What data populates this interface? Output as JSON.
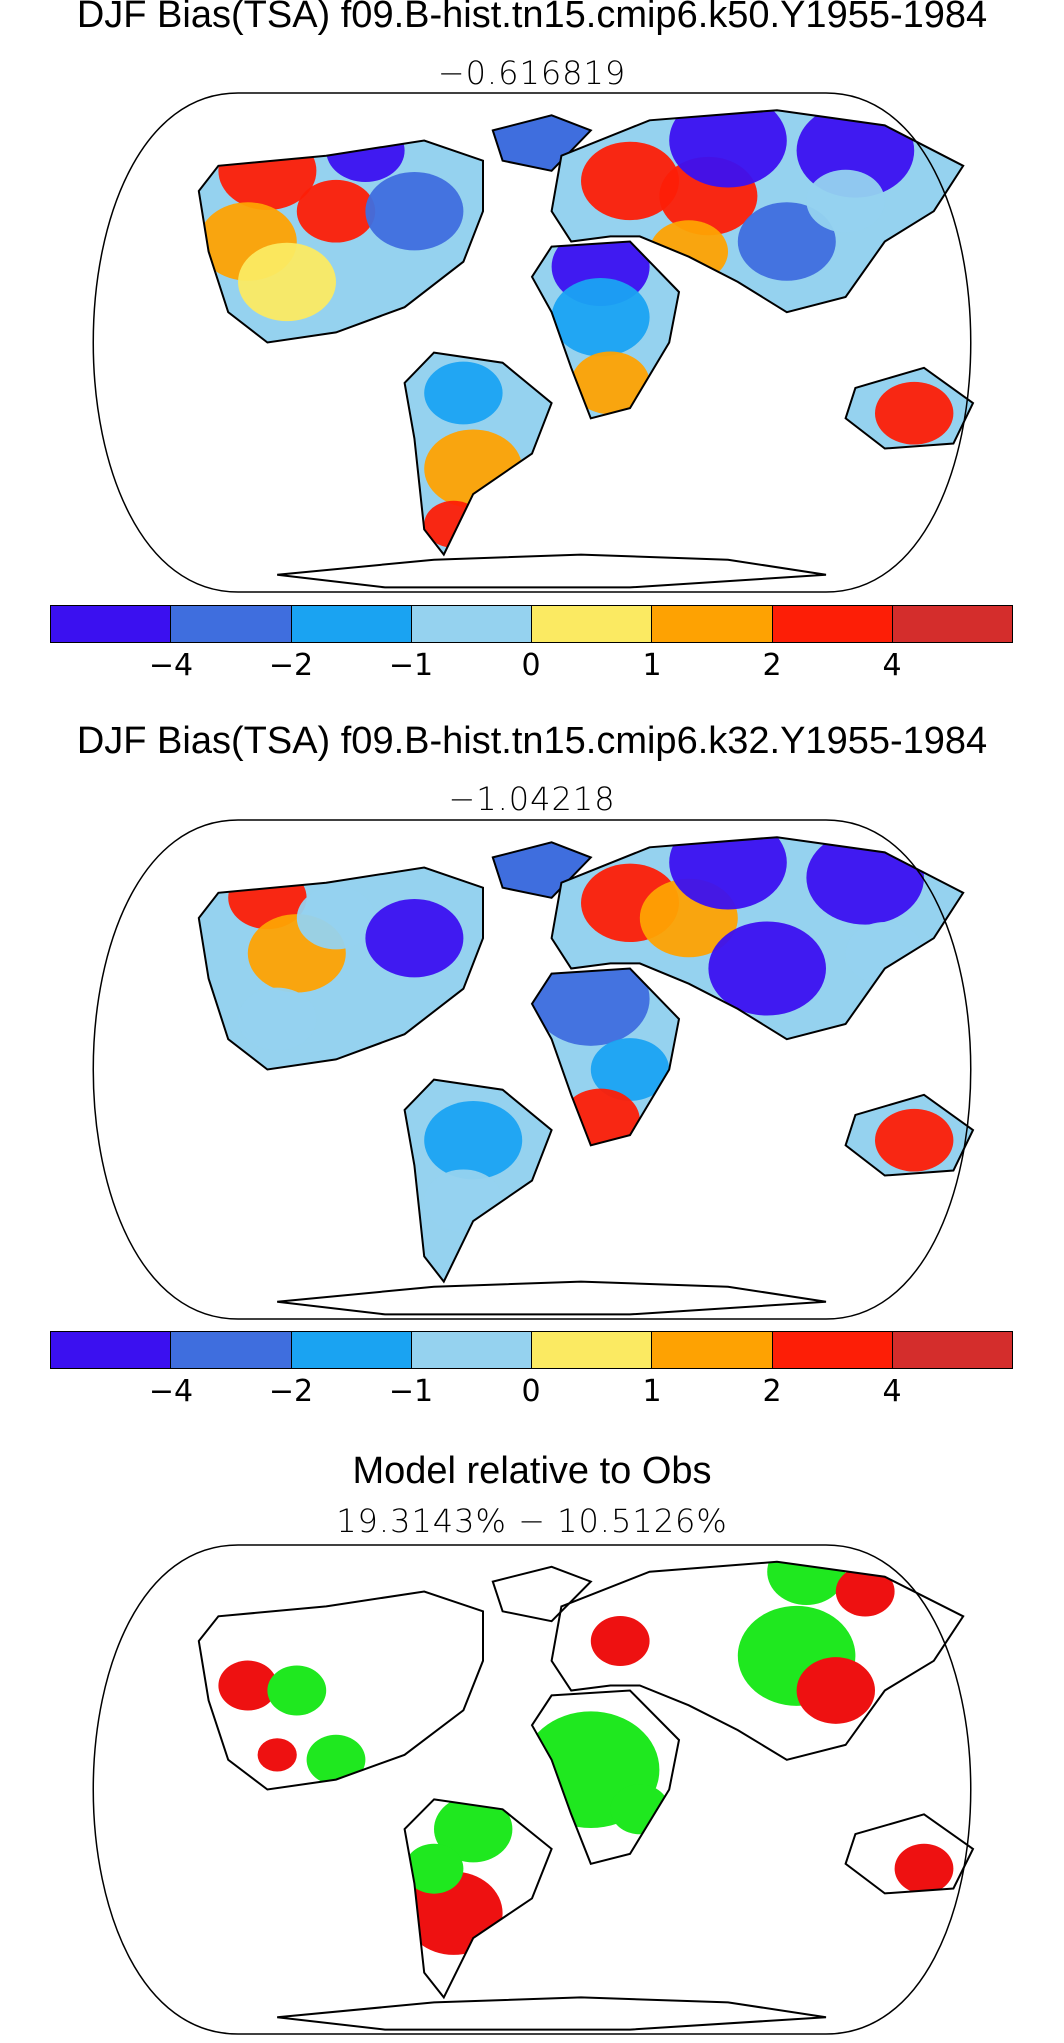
{
  "panels": [
    {
      "title": "DJF Bias(TSA) f09.B-hist.tn15.cmip6.k50.Y1955-1984",
      "subtitle": "−0.616819",
      "variant": 1
    },
    {
      "title": "DJF Bias(TSA) f09.B-hist.tn15.cmip6.k32.Y1955-1984",
      "subtitle": "−1.04218",
      "variant": 2
    },
    {
      "title": "Model relative to Obs",
      "subtitle": "19.3143% − 10.5126%"
    }
  ],
  "colorbar": {
    "colors": [
      "#3b10f0",
      "#3f6ede",
      "#1aa3f2",
      "#95d2ef",
      "#fbea62",
      "#fea202",
      "#fd1e06",
      "#d42d2c"
    ],
    "tick_labels": [
      "−4",
      "−2",
      "−1",
      "0",
      "1",
      "2",
      "4"
    ]
  },
  "relative_colors": {
    "better": "#1fe81f",
    "worse": "#ee1111"
  }
}
